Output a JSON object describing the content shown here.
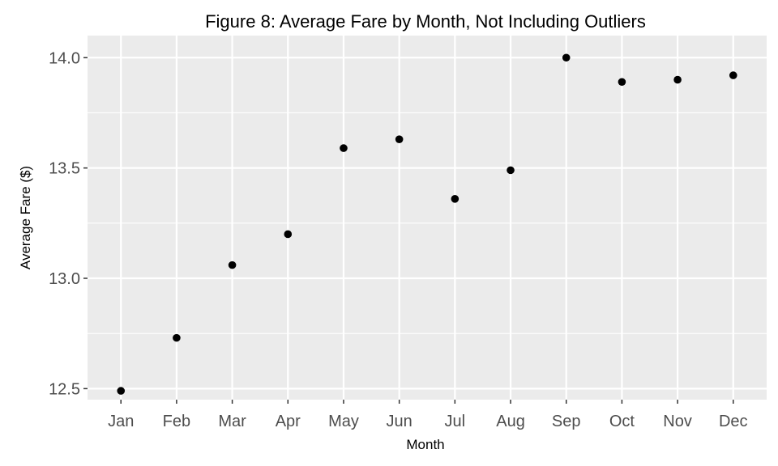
{
  "chart_data": {
    "type": "scatter",
    "title": "Figure 8: Average Fare by Month, Not Including Outliers",
    "xlabel": "Month",
    "ylabel": "Average Fare ($)",
    "categories": [
      "Jan",
      "Feb",
      "Mar",
      "Apr",
      "May",
      "Jun",
      "Jul",
      "Aug",
      "Sep",
      "Oct",
      "Nov",
      "Dec"
    ],
    "values": [
      12.49,
      12.73,
      13.06,
      13.2,
      13.59,
      13.63,
      13.36,
      13.49,
      14.0,
      13.89,
      13.9,
      13.92
    ],
    "ylim": [
      12.45,
      14.1
    ],
    "yticks": [
      12.5,
      13.0,
      13.5,
      14.0
    ],
    "ytick_labels": [
      "12.5",
      "13.0",
      "13.5",
      "14.0"
    ],
    "grid": true,
    "legend": "none",
    "colors": {
      "panel": "#ebebeb",
      "grid": "#ffffff",
      "point": "#000000",
      "tick_text": "#4d4d4d"
    }
  }
}
